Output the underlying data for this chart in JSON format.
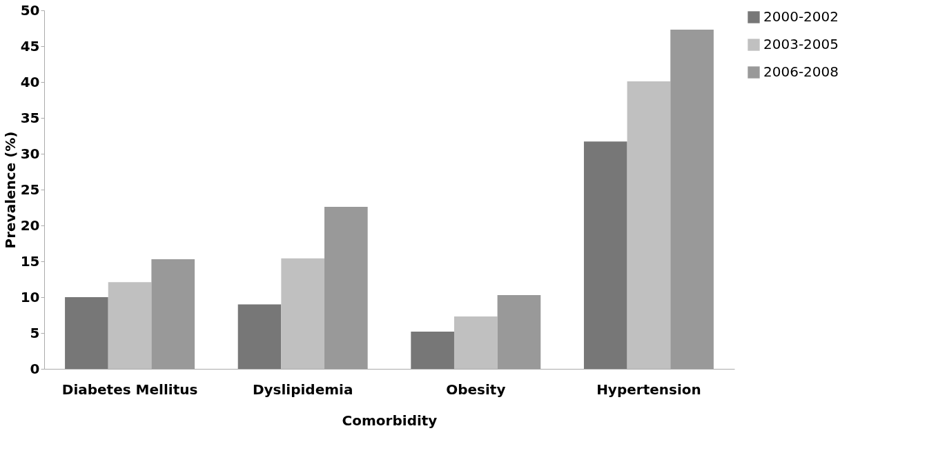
{
  "chart_data": {
    "type": "bar",
    "xlabel": "Comorbidity",
    "ylabel": "Prevalence (%)",
    "categories": [
      "Diabetes Mellitus",
      "Dyslipidemia",
      "Obesity",
      "Hypertension"
    ],
    "series": [
      {
        "name": "2000-2002",
        "color": "#777777",
        "values": [
          10.0,
          9.0,
          5.2,
          31.7
        ]
      },
      {
        "name": "2003-2005",
        "color": "#c0c0c0",
        "values": [
          12.1,
          15.4,
          7.3,
          40.1
        ]
      },
      {
        "name": "2006-2008",
        "color": "#999999",
        "values": [
          15.3,
          22.6,
          10.3,
          47.3
        ]
      }
    ],
    "ylim": [
      0,
      50
    ],
    "yticks": [
      0,
      5,
      10,
      15,
      20,
      25,
      30,
      35,
      40,
      45,
      50
    ],
    "grid": false,
    "legend": "right"
  }
}
